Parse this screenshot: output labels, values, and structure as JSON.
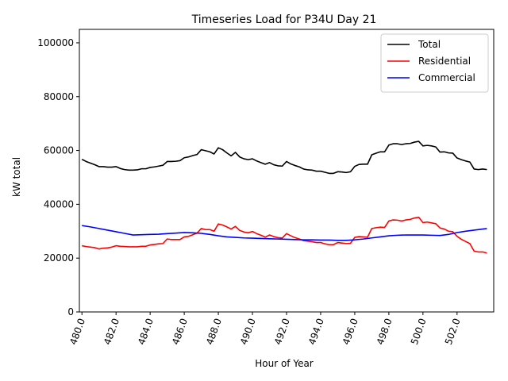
{
  "chart_data": {
    "type": "line",
    "title": "Timeseries Load for P34U   Day 21",
    "xlabel": "Hour of Year",
    "ylabel": "kW total",
    "xlim": [
      479.85,
      504.15
    ],
    "ylim": [
      0,
      105000
    ],
    "xticks": [
      480,
      482,
      484,
      486,
      488,
      490,
      492,
      494,
      496,
      498,
      500,
      502
    ],
    "xtick_labels": [
      "480.0",
      "482.0",
      "484.0",
      "486.0",
      "488.0",
      "490.0",
      "492.0",
      "494.0",
      "496.0",
      "498.0",
      "500.0",
      "502.0"
    ],
    "yticks": [
      0,
      20000,
      40000,
      60000,
      80000,
      100000
    ],
    "ytick_labels": [
      "0",
      "20000",
      "40000",
      "60000",
      "80000",
      "100000"
    ],
    "legend_position": "top-right",
    "grid": false,
    "series": [
      {
        "name": "Total",
        "color": "#000000",
        "x": [
          480.0,
          480.25,
          480.5,
          480.75,
          481.0,
          481.25,
          481.5,
          481.75,
          482.0,
          482.25,
          482.5,
          482.75,
          483.0,
          483.25,
          483.5,
          483.75,
          484.0,
          484.25,
          484.5,
          484.75,
          485.0,
          485.25,
          485.5,
          485.75,
          486.0,
          486.25,
          486.5,
          486.75,
          487.0,
          487.25,
          487.5,
          487.75,
          488.0,
          488.25,
          488.5,
          488.75,
          489.0,
          489.25,
          489.5,
          489.75,
          490.0,
          490.25,
          490.5,
          490.75,
          491.0,
          491.25,
          491.5,
          491.75,
          492.0,
          492.25,
          492.5,
          492.75,
          493.0,
          493.25,
          493.5,
          493.75,
          494.0,
          494.25,
          494.5,
          494.75,
          495.0,
          495.25,
          495.5,
          495.75,
          496.0,
          496.25,
          496.5,
          496.75,
          497.0,
          497.25,
          497.5,
          497.75,
          498.0,
          498.25,
          498.5,
          498.75,
          499.0,
          499.25,
          499.5,
          499.75,
          500.0,
          500.25,
          500.5,
          500.75,
          501.0,
          501.25,
          501.5,
          501.75,
          502.0,
          502.25,
          502.5,
          502.75,
          503.0,
          503.25,
          503.5,
          503.75
        ],
        "values": [
          56700,
          55900,
          55300,
          54700,
          54000,
          54000,
          53800,
          53800,
          54000,
          53300,
          52900,
          52700,
          52700,
          52800,
          53200,
          53200,
          53700,
          53900,
          54200,
          54500,
          55900,
          55900,
          56000,
          56200,
          57300,
          57600,
          58100,
          58500,
          60300,
          59900,
          59500,
          58700,
          61000,
          60300,
          59100,
          58000,
          59300,
          57600,
          56900,
          56600,
          56900,
          56100,
          55500,
          54900,
          55500,
          54700,
          54300,
          54200,
          55900,
          55000,
          54400,
          53900,
          53100,
          52800,
          52700,
          52300,
          52300,
          51900,
          51500,
          51500,
          52100,
          52000,
          51800,
          52100,
          54100,
          54800,
          54900,
          54900,
          58400,
          59000,
          59500,
          59500,
          62000,
          62500,
          62500,
          62200,
          62500,
          62600,
          63100,
          63400,
          61700,
          61900,
          61700,
          61300,
          59400,
          59500,
          59100,
          59000,
          57200,
          56600,
          56100,
          55700,
          53100,
          52900,
          53100,
          52900
        ]
      },
      {
        "name": "Residential",
        "color": "#ff0000",
        "x": [
          480.0,
          480.25,
          480.5,
          480.75,
          481.0,
          481.25,
          481.5,
          481.75,
          482.0,
          482.25,
          482.5,
          482.75,
          483.0,
          483.25,
          483.5,
          483.75,
          484.0,
          484.25,
          484.5,
          484.75,
          485.0,
          485.25,
          485.5,
          485.75,
          486.0,
          486.25,
          486.5,
          486.75,
          487.0,
          487.25,
          487.5,
          487.75,
          488.0,
          488.25,
          488.5,
          488.75,
          489.0,
          489.25,
          489.5,
          489.75,
          490.0,
          490.25,
          490.5,
          490.75,
          491.0,
          491.25,
          491.5,
          491.75,
          492.0,
          492.25,
          492.5,
          492.75,
          493.0,
          493.25,
          493.5,
          493.75,
          494.0,
          494.25,
          494.5,
          494.75,
          495.0,
          495.25,
          495.5,
          495.75,
          496.0,
          496.25,
          496.5,
          496.75,
          497.0,
          497.25,
          497.5,
          497.75,
          498.0,
          498.25,
          498.5,
          498.75,
          499.0,
          499.25,
          499.5,
          499.75,
          500.0,
          500.25,
          500.5,
          500.75,
          501.0,
          501.25,
          501.5,
          501.75,
          502.0,
          502.25,
          502.5,
          502.75,
          503.0,
          503.25,
          503.5,
          503.75
        ],
        "values": [
          24600,
          24300,
          24100,
          23900,
          23400,
          23700,
          23800,
          24100,
          24600,
          24400,
          24300,
          24200,
          24200,
          24200,
          24400,
          24400,
          24900,
          25100,
          25300,
          25400,
          27100,
          26900,
          26900,
          26900,
          27900,
          28100,
          28700,
          29300,
          31000,
          30600,
          30600,
          30000,
          32700,
          32300,
          31600,
          30800,
          31800,
          30300,
          29700,
          29400,
          29900,
          29100,
          28500,
          27800,
          28600,
          28000,
          27600,
          27500,
          29100,
          28300,
          27600,
          27100,
          26500,
          26300,
          26100,
          25800,
          25800,
          25300,
          25000,
          25000,
          25800,
          25600,
          25400,
          25500,
          27700,
          28000,
          27900,
          27800,
          31000,
          31300,
          31500,
          31400,
          33800,
          34200,
          34100,
          33800,
          34200,
          34400,
          34900,
          35200,
          33200,
          33400,
          33100,
          32800,
          31200,
          30800,
          30000,
          29800,
          28100,
          27000,
          26200,
          25400,
          22600,
          22300,
          22300,
          21900
        ]
      },
      {
        "name": "Commercial",
        "color": "#0000ff",
        "x": [
          480.0,
          480.5,
          481.0,
          481.5,
          482.0,
          482.5,
          483.0,
          483.5,
          484.0,
          484.5,
          485.0,
          485.5,
          486.0,
          486.5,
          487.0,
          487.5,
          488.0,
          488.5,
          489.0,
          489.5,
          490.0,
          490.5,
          491.0,
          491.5,
          492.0,
          492.5,
          493.0,
          493.5,
          494.0,
          494.5,
          495.0,
          495.5,
          496.0,
          496.5,
          497.0,
          497.5,
          498.0,
          498.5,
          499.0,
          499.5,
          500.0,
          500.5,
          501.0,
          501.5,
          502.0,
          502.5,
          503.0,
          503.5,
          503.75
        ],
        "values": [
          32100,
          31600,
          31000,
          30400,
          29800,
          29200,
          28600,
          28700,
          28800,
          28900,
          29100,
          29300,
          29500,
          29400,
          29200,
          28800,
          28300,
          27900,
          27700,
          27500,
          27400,
          27300,
          27200,
          27100,
          27000,
          26900,
          26800,
          26800,
          26700,
          26700,
          26600,
          26600,
          26800,
          27100,
          27500,
          27900,
          28300,
          28500,
          28600,
          28600,
          28600,
          28500,
          28400,
          28800,
          29500,
          30000,
          30400,
          30800,
          31000
        ]
      }
    ]
  }
}
